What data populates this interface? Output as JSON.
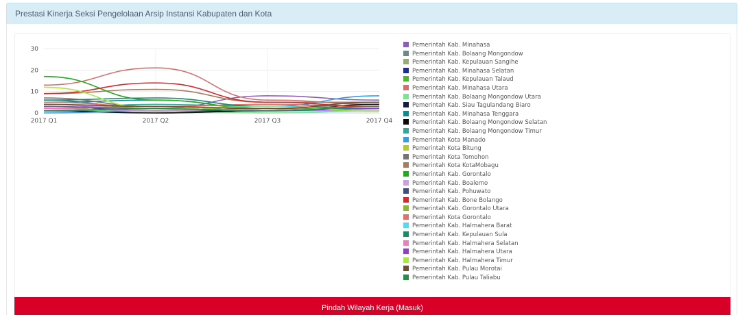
{
  "panel": {
    "title": "Prestasi Kinerja Seksi Pengelolaan Arsip Instansi Kabupaten dan Kota"
  },
  "actions": {
    "primary_label": "Pindah Wilayah Kerja (Masuk)",
    "primary_color": "#d80027"
  },
  "chart_data": {
    "type": "line",
    "title": "",
    "xlabel": "",
    "ylabel": "",
    "categories": [
      "2017 Q1",
      "2017 Q2",
      "2017 Q3",
      "2017 Q4"
    ],
    "ylim": [
      0,
      30
    ],
    "yticks": [
      0,
      10,
      20,
      30
    ],
    "grid": true,
    "legend_position": "right",
    "series": [
      {
        "name": "Pemerintah Kab. Minahasa",
        "color": "#8a5fb5",
        "values": [
          6,
          2,
          8,
          6
        ]
      },
      {
        "name": "Pemerintah Kab. Bolaang Mongondow",
        "color": "#6f8a84",
        "values": [
          4,
          1,
          3,
          2
        ]
      },
      {
        "name": "Pemerintah Kab. Kepulauan Sangihe",
        "color": "#9aaa7a",
        "values": [
          3,
          2,
          1,
          3
        ]
      },
      {
        "name": "Pemerintah Kab. Minahasa Selatan",
        "color": "#1d2e96",
        "values": [
          2,
          1,
          2,
          1
        ]
      },
      {
        "name": "Pemerintah Kab. Kepulauan Talaud",
        "color": "#4cb82e",
        "values": [
          1,
          0,
          1,
          2
        ]
      },
      {
        "name": "Pemerintah Kab. Minahasa Utara",
        "color": "#d47070",
        "values": [
          13,
          21,
          6,
          4
        ]
      },
      {
        "name": "Pemerintah Kab. Bolaang Mongondow Utara",
        "color": "#7de394",
        "values": [
          1,
          1,
          0,
          1
        ]
      },
      {
        "name": "Pemerintah Kab. Siau Tagulandang Biaro",
        "color": "#122040",
        "values": [
          2,
          1,
          1,
          2
        ]
      },
      {
        "name": "Pemerintah Kab. Minahasa Tenggara",
        "color": "#0d8a8a",
        "values": [
          5,
          6,
          2,
          2
        ]
      },
      {
        "name": "Pemerintah Kab. Bolaang Mongondow Selatan",
        "color": "#0a0a0a",
        "values": [
          1,
          0,
          1,
          4
        ]
      },
      {
        "name": "Pemerintah Kab. Bolaang Mongondow Timur",
        "color": "#33a69a",
        "values": [
          2,
          4,
          3,
          1
        ]
      },
      {
        "name": "Pemerintah Kota Manado",
        "color": "#3a9be0",
        "values": [
          0,
          1,
          3,
          8
        ]
      },
      {
        "name": "Pemerintah Kota Bitung",
        "color": "#b5c935",
        "values": [
          3,
          2,
          1,
          2
        ]
      },
      {
        "name": "Pemerintah Kota Tomohon",
        "color": "#757575",
        "values": [
          7,
          3,
          4,
          3
        ]
      },
      {
        "name": "Pemerintah Kota KotaMobagu",
        "color": "#a87a5e",
        "values": [
          9,
          11,
          5,
          5
        ]
      },
      {
        "name": "Pemerintah Kab. Gorontalo",
        "color": "#1faa1f",
        "values": [
          17,
          6,
          2,
          2
        ]
      },
      {
        "name": "Pemerintah Kab. Boalemo",
        "color": "#c9a0e6",
        "values": [
          4,
          2,
          1,
          3
        ]
      },
      {
        "name": "Pemerintah Kab. Pohuwato",
        "color": "#3e4f80",
        "values": [
          3,
          1,
          2,
          1
        ]
      },
      {
        "name": "Pemerintah Kab. Bone Bolango",
        "color": "#d42a2a",
        "values": [
          9,
          14,
          5,
          3
        ]
      },
      {
        "name": "Pemerintah Kab. Gorontalo Utara",
        "color": "#8cb53a",
        "values": [
          2,
          3,
          1,
          2
        ]
      },
      {
        "name": "Pemerintah Kota Gorontalo",
        "color": "#e0706c",
        "values": [
          5,
          3,
          4,
          2
        ]
      },
      {
        "name": "Pemerintah Kab. Halmahera Barat",
        "color": "#5ad6f2",
        "values": [
          1,
          2,
          1,
          1
        ]
      },
      {
        "name": "Pemerintah Kab. Kepulauan Sula",
        "color": "#1a8a6a",
        "values": [
          6,
          7,
          3,
          2
        ]
      },
      {
        "name": "Pemerintah Kab. Halmahera Selatan",
        "color": "#f07cc0",
        "values": [
          2,
          1,
          2,
          1
        ]
      },
      {
        "name": "Pemerintah Kab. Halmahera Utara",
        "color": "#9040c8",
        "values": [
          3,
          2,
          1,
          2
        ]
      },
      {
        "name": "Pemerintah Kab. Halmahera Timur",
        "color": "#a8e840",
        "values": [
          12,
          2,
          3,
          1
        ]
      },
      {
        "name": "Pemerintah Kab. Pulau Morotai",
        "color": "#6a5038",
        "values": [
          4,
          3,
          2,
          5
        ]
      },
      {
        "name": "Pemerintah Kab. Pulau Taliabu",
        "color": "#2a8a48",
        "values": [
          1,
          2,
          1,
          3
        ]
      }
    ]
  }
}
